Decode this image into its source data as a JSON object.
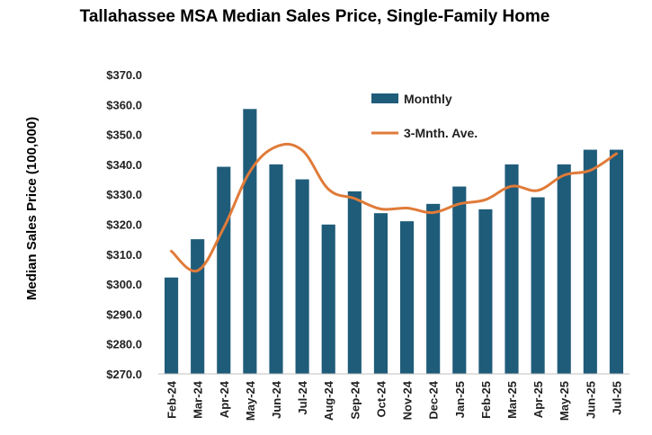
{
  "chart_data": {
    "type": "bar",
    "title": "Tallahassee MSA Median Sales Price, Single-Family Home",
    "xlabel": "",
    "ylabel": "Median Sales Price (100,000)",
    "ylim": [
      270.0,
      370.0
    ],
    "yticks": [
      "$270.0",
      "$280.0",
      "$290.0",
      "$300.0",
      "$310.0",
      "$320.0",
      "$330.0",
      "$340.0",
      "$350.0",
      "$360.0",
      "$370.0"
    ],
    "ytick_values": [
      270,
      280,
      290,
      300,
      310,
      320,
      330,
      340,
      350,
      360,
      370
    ],
    "categories": [
      "Feb-24",
      "Mar-24",
      "Apr-24",
      "May-24",
      "Jun-24",
      "Jul-24",
      "Aug-24",
      "Sep-24",
      "Oct-24",
      "Nov-24",
      "Dec-24",
      "Jan-25",
      "Feb-25",
      "Mar-25",
      "Apr-25",
      "May-25",
      "Jun-25",
      "Jul-25"
    ],
    "series": [
      {
        "name": "Monthly",
        "type": "bar",
        "color": "#1f5c7a",
        "values": [
          302.2,
          315.0,
          339.2,
          358.5,
          340.0,
          335.0,
          319.9,
          331.0,
          323.7,
          321.0,
          326.8,
          332.6,
          325.0,
          340.0,
          329.0,
          340.0,
          344.9,
          344.9
        ]
      },
      {
        "name": "3-Mnth. Ave.",
        "type": "line",
        "color": "#e07b39",
        "values": [
          311.0,
          304.5,
          318.8,
          337.6,
          345.9,
          344.7,
          331.7,
          328.6,
          325.1,
          325.4,
          323.9,
          326.8,
          328.2,
          332.7,
          331.3,
          336.4,
          338.0,
          343.6
        ]
      }
    ],
    "grid": false,
    "legend": "top-center"
  }
}
